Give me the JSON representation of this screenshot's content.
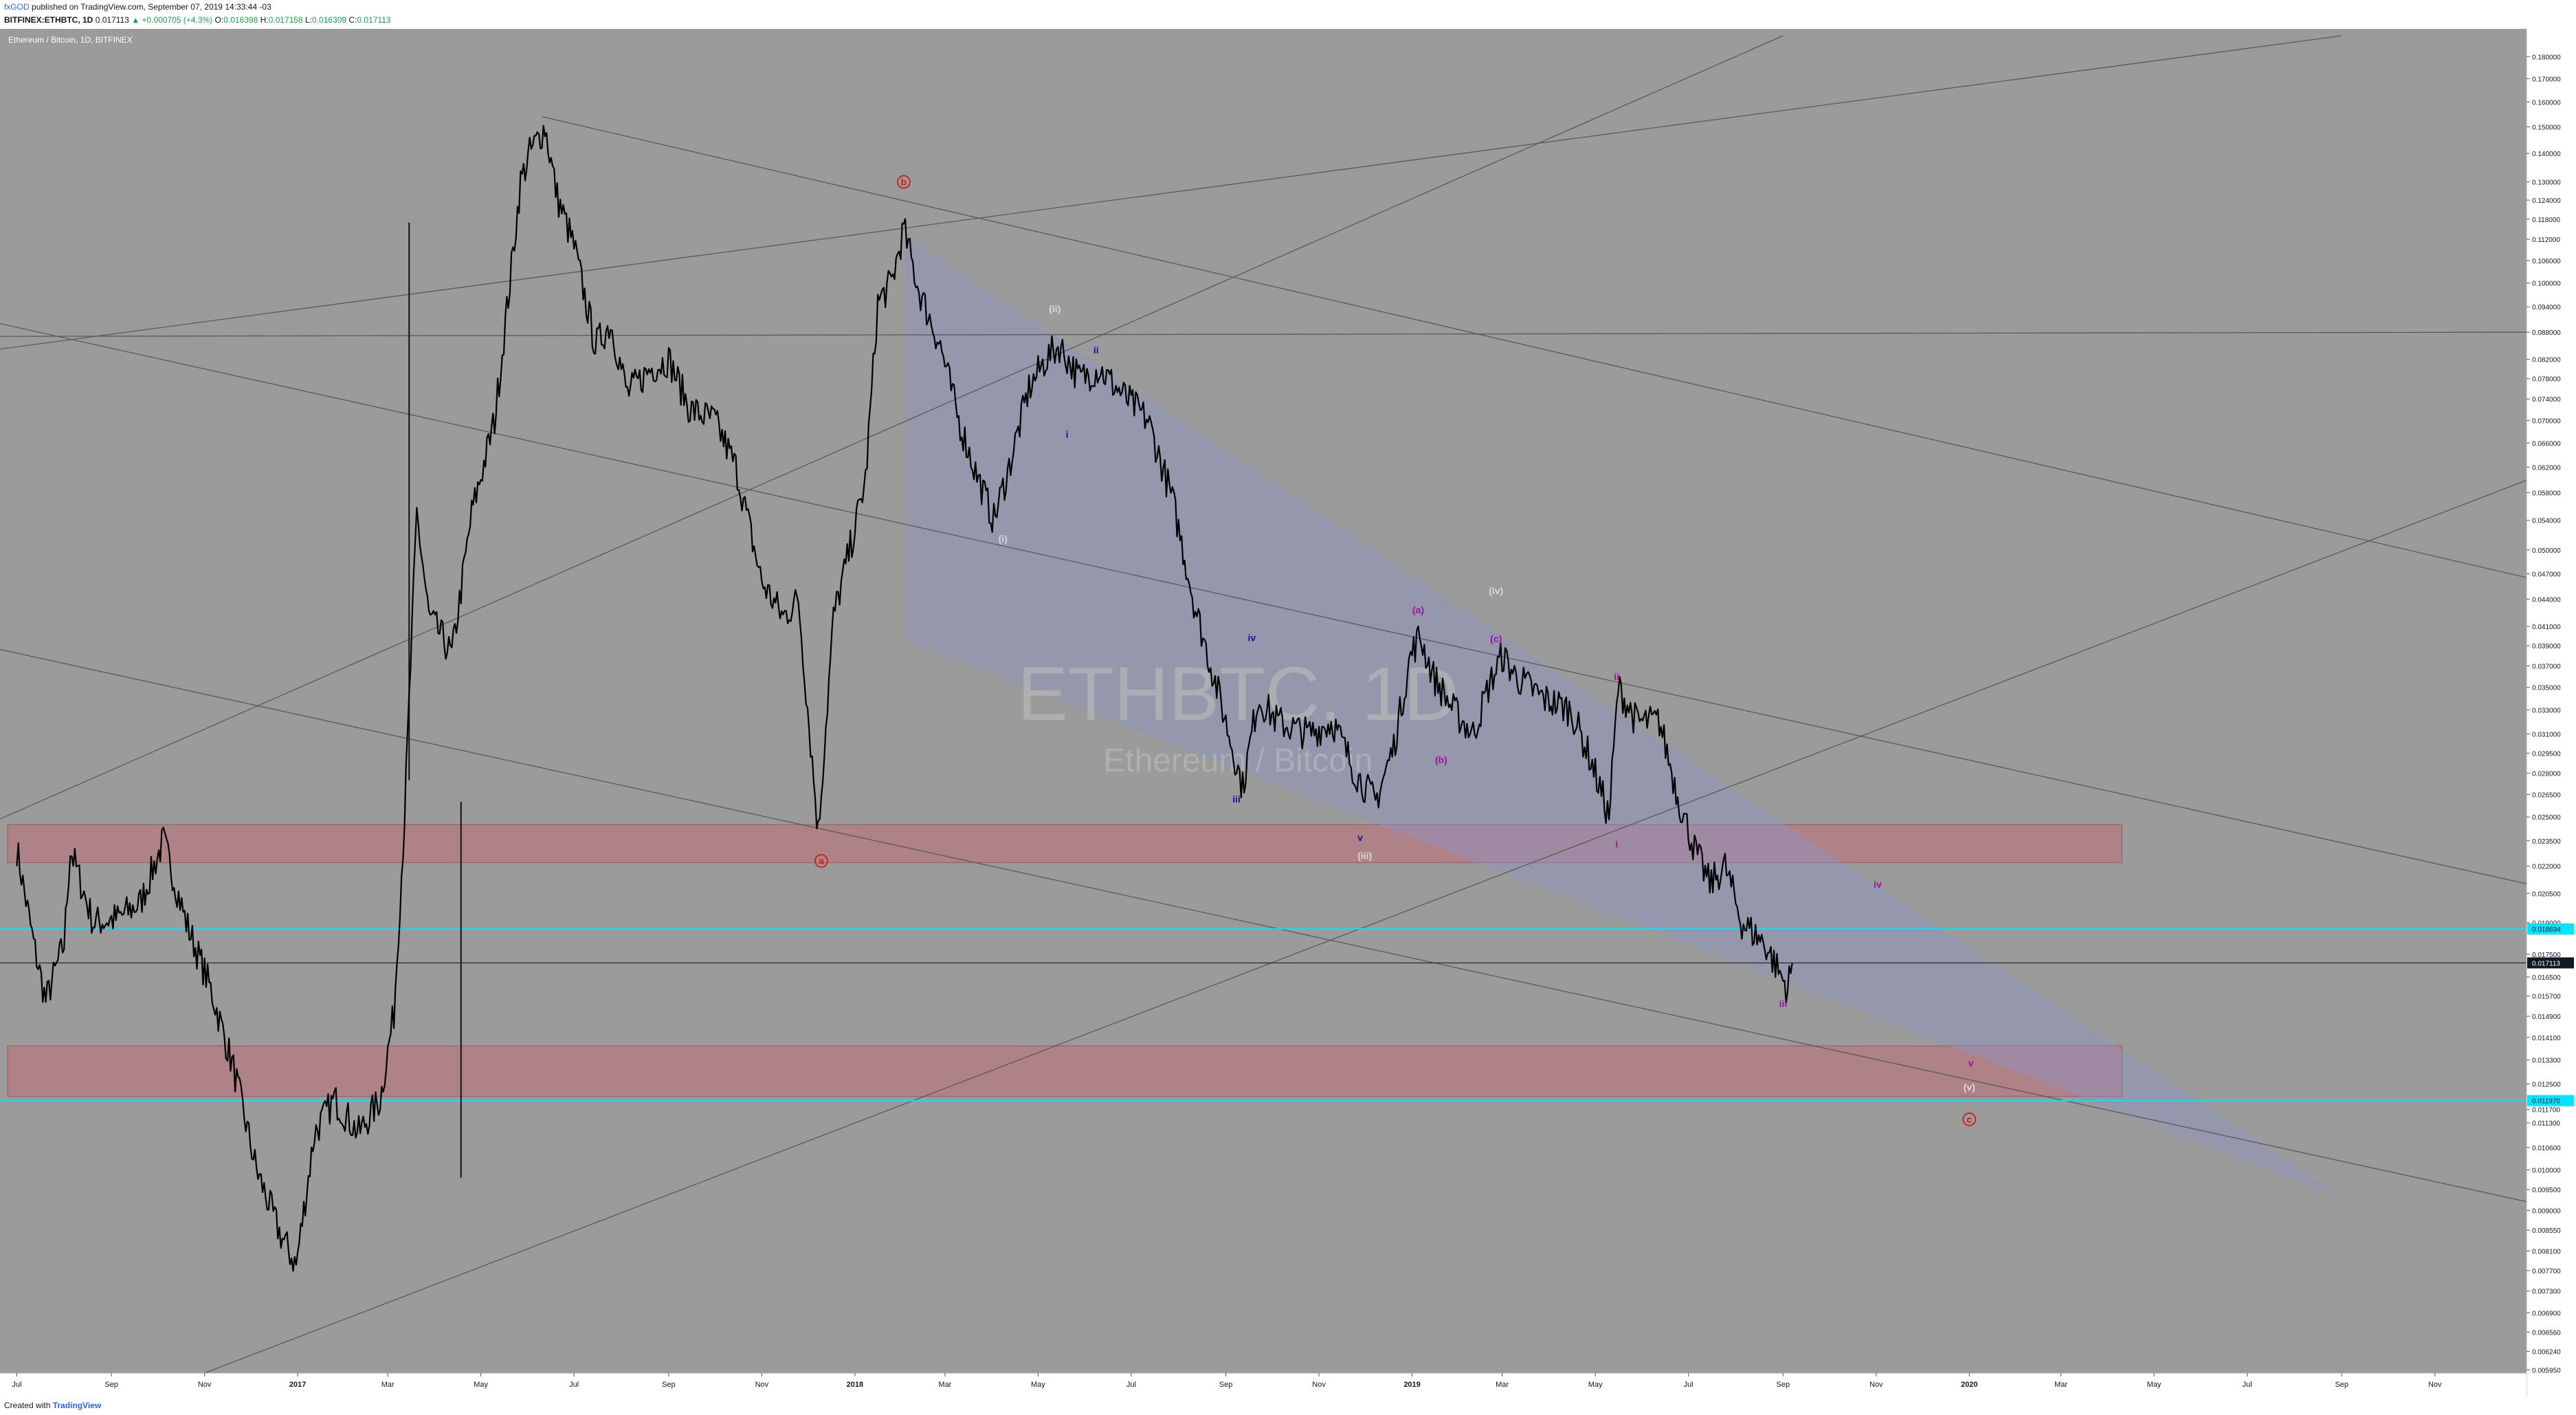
{
  "header": {
    "author": "fxGOD",
    "published": "published on TradingView.com, September 07, 2019 14:33:44 -03",
    "symbol": "BITFINEX:ETHBTC, 1D",
    "last": "0.017113",
    "change": "▲ +0.000705 (+4.3%)",
    "o_label": "O:",
    "o_value": "0.016398",
    "h_label": "H:",
    "h_value": "0.017158",
    "l_label": "L:",
    "l_value": "0.016309",
    "c_label": "C:",
    "c_value": "0.017113"
  },
  "pane_label": "Ethereum / Bitcoin, 1D, BITFINEX",
  "watermark": {
    "symbol": "ETHBTC, 1D",
    "name": "Ethereum / Bitcoin"
  },
  "footer": {
    "created_with": "Created with",
    "brand": "TradingView"
  },
  "colors": {
    "background": "#9b9b9b",
    "candles": "#000000",
    "zone": "#b57a80",
    "cyan": "#00e5ff",
    "wedge": "#8e92c4",
    "red_label": "#d11a1a",
    "blue_label": "#1212a0",
    "magenta_label": "#a0109c",
    "grey_label": "#d9d9d9"
  },
  "chart_data": {
    "type": "candlestick",
    "series": [
      {
        "name": "ETHBTC",
        "points": [
          [
            "2016-07-01",
            0.023
          ],
          [
            "2016-07-12",
            0.018
          ],
          [
            "2016-07-20",
            0.0155
          ],
          [
            "2016-08-01",
            0.018
          ],
          [
            "2016-08-05",
            0.023
          ],
          [
            "2016-08-20",
            0.019
          ],
          [
            "2016-09-05",
            0.0192
          ],
          [
            "2016-09-20",
            0.02
          ],
          [
            "2016-10-05",
            0.0235
          ],
          [
            "2016-10-20",
            0.019
          ],
          [
            "2016-11-05",
            0.016
          ],
          [
            "2016-11-20",
            0.013
          ],
          [
            "2016-12-05",
            0.01
          ],
          [
            "2016-12-20",
            0.0085
          ],
          [
            "2016-12-31",
            0.0078
          ],
          [
            "2017-01-12",
            0.011
          ],
          [
            "2017-01-25",
            0.012
          ],
          [
            "2017-02-10",
            0.011
          ],
          [
            "2017-02-24",
            0.012
          ],
          [
            "2017-03-05",
            0.015
          ],
          [
            "2017-03-12",
            0.025
          ],
          [
            "2017-03-20",
            0.055
          ],
          [
            "2017-03-28",
            0.042
          ],
          [
            "2017-04-05",
            0.04
          ],
          [
            "2017-04-12",
            0.038
          ],
          [
            "2017-04-25",
            0.055
          ],
          [
            "2017-05-10",
            0.07
          ],
          [
            "2017-05-20",
            0.1
          ],
          [
            "2017-05-27",
            0.13
          ],
          [
            "2017-06-02",
            0.14
          ],
          [
            "2017-06-12",
            0.15
          ],
          [
            "2017-06-20",
            0.125
          ],
          [
            "2017-07-01",
            0.11
          ],
          [
            "2017-07-15",
            0.085
          ],
          [
            "2017-07-25",
            0.09
          ],
          [
            "2017-08-05",
            0.075
          ],
          [
            "2017-08-20",
            0.08
          ],
          [
            "2017-09-01",
            0.082
          ],
          [
            "2017-09-15",
            0.072
          ],
          [
            "2017-10-01",
            0.07
          ],
          [
            "2017-10-15",
            0.062
          ],
          [
            "2017-11-01",
            0.046
          ],
          [
            "2017-11-15",
            0.042
          ],
          [
            "2017-11-25",
            0.044
          ],
          [
            "2017-12-08",
            0.024
          ],
          [
            "2017-12-18",
            0.042
          ],
          [
            "2017-12-31",
            0.052
          ],
          [
            "2018-01-08",
            0.06
          ],
          [
            "2018-01-16",
            0.095
          ],
          [
            "2018-01-25",
            0.1
          ],
          [
            "2018-02-02",
            0.115
          ],
          [
            "2018-02-12",
            0.098
          ],
          [
            "2018-02-26",
            0.085
          ],
          [
            "2018-03-10",
            0.07
          ],
          [
            "2018-03-20",
            0.062
          ],
          [
            "2018-04-02",
            0.054
          ],
          [
            "2018-04-12",
            0.062
          ],
          [
            "2018-04-25",
            0.076
          ],
          [
            "2018-05-06",
            0.082
          ],
          [
            "2018-05-15",
            0.085
          ],
          [
            "2018-05-28",
            0.078
          ],
          [
            "2018-06-10",
            0.08
          ],
          [
            "2018-06-28",
            0.074
          ],
          [
            "2018-07-12",
            0.07
          ],
          [
            "2018-07-28",
            0.057
          ],
          [
            "2018-08-12",
            0.043
          ],
          [
            "2018-08-28",
            0.034
          ],
          [
            "2018-09-12",
            0.027
          ],
          [
            "2018-09-22",
            0.034
          ],
          [
            "2018-10-05",
            0.032
          ],
          [
            "2018-10-25",
            0.031
          ],
          [
            "2018-11-10",
            0.032
          ],
          [
            "2018-11-25",
            0.028
          ],
          [
            "2018-12-08",
            0.026
          ],
          [
            "2018-12-20",
            0.03
          ],
          [
            "2018-12-31",
            0.038
          ],
          [
            "2019-01-06",
            0.04
          ],
          [
            "2019-01-15",
            0.036
          ],
          [
            "2019-01-28",
            0.033
          ],
          [
            "2019-02-10",
            0.031
          ],
          [
            "2019-02-20",
            0.035
          ],
          [
            "2019-03-01",
            0.038
          ],
          [
            "2019-03-10",
            0.036
          ],
          [
            "2019-03-28",
            0.034
          ],
          [
            "2019-04-15",
            0.033
          ],
          [
            "2019-04-28",
            0.029
          ],
          [
            "2019-05-10",
            0.025
          ],
          [
            "2019-05-16",
            0.035
          ],
          [
            "2019-05-28",
            0.032
          ],
          [
            "2019-06-12",
            0.032
          ],
          [
            "2019-06-25",
            0.026
          ],
          [
            "2019-07-05",
            0.023
          ],
          [
            "2019-07-15",
            0.021
          ],
          [
            "2019-07-25",
            0.022
          ],
          [
            "2019-08-05",
            0.019
          ],
          [
            "2019-08-20",
            0.018
          ],
          [
            "2019-08-31",
            0.0165
          ],
          [
            "2019-09-04",
            0.016
          ],
          [
            "2019-09-07",
            0.0171
          ]
        ]
      }
    ],
    "y_axis": {
      "scale": "log",
      "range": [
        0.0059,
        0.19
      ],
      "ticks": [
        "0.180000",
        "0.170000",
        "0.160000",
        "0.150000",
        "0.140000",
        "0.130000",
        "0.124000",
        "0.118000",
        "0.112000",
        "0.106000",
        "0.100000",
        "0.094000",
        "0.088000",
        "0.082000",
        "0.078000",
        "0.074000",
        "0.070000",
        "0.066000",
        "0.062000",
        "0.058000",
        "0.054000",
        "0.050000",
        "0.047000",
        "0.044000",
        "0.041000",
        "0.039000",
        "0.037000",
        "0.035000",
        "0.033000",
        "0.031000",
        "0.029500",
        "0.028000",
        "0.026500",
        "0.025000",
        "0.023500",
        "0.022000",
        "0.020500",
        "0.019000",
        "0.017500",
        "0.016500",
        "0.015700",
        "0.014900",
        "0.014100",
        "0.013300",
        "0.012500",
        "0.011700",
        "0.011300",
        "0.010600",
        "0.010000",
        "0.009500",
        "0.009000",
        "0.008550",
        "0.008100",
        "0.007700",
        "0.007300",
        "0.006900",
        "0.006560",
        "0.006240",
        "0.005950"
      ],
      "price_tags": [
        {
          "value": "0.018694",
          "num": 0.018694,
          "style": "cyan"
        },
        {
          "value": "0.017113",
          "num": 0.017113,
          "style": "dark"
        },
        {
          "value": "0.011970",
          "num": 0.01197,
          "style": "cyan"
        }
      ]
    },
    "x_axis": {
      "ticks": [
        {
          "label": "Jul",
          "date": "2016-07-01"
        },
        {
          "label": "Sep",
          "date": "2016-09-01"
        },
        {
          "label": "Nov",
          "date": "2016-11-01"
        },
        {
          "label": "2017",
          "date": "2017-01-01"
        },
        {
          "label": "Mar",
          "date": "2017-03-01"
        },
        {
          "label": "May",
          "date": "2017-05-01"
        },
        {
          "label": "Jul",
          "date": "2017-07-01"
        },
        {
          "label": "Sep",
          "date": "2017-09-01"
        },
        {
          "label": "Nov",
          "date": "2017-11-01"
        },
        {
          "label": "2018",
          "date": "2018-01-01"
        },
        {
          "label": "Mar",
          "date": "2018-03-01"
        },
        {
          "label": "May",
          "date": "2018-05-01"
        },
        {
          "label": "Jul",
          "date": "2018-07-01"
        },
        {
          "label": "Sep",
          "date": "2018-09-01"
        },
        {
          "label": "Nov",
          "date": "2018-11-01"
        },
        {
          "label": "2019",
          "date": "2019-01-01"
        },
        {
          "label": "Mar",
          "date": "2019-03-01"
        },
        {
          "label": "May",
          "date": "2019-05-01"
        },
        {
          "label": "Jul",
          "date": "2019-07-01"
        },
        {
          "label": "Sep",
          "date": "2019-09-01"
        },
        {
          "label": "Nov",
          "date": "2019-11-01"
        },
        {
          "label": "2020",
          "date": "2020-01-01"
        },
        {
          "label": "Mar",
          "date": "2020-03-01"
        },
        {
          "label": "May",
          "date": "2020-05-01"
        },
        {
          "label": "Jul",
          "date": "2020-07-01"
        },
        {
          "label": "Sep",
          "date": "2020-09-01"
        },
        {
          "label": "Nov",
          "date": "2020-11-01"
        }
      ]
    },
    "zones": [
      {
        "from": "2016-06-25",
        "to": "2020-04-10",
        "top": 0.0245,
        "bottom": 0.0222
      },
      {
        "from": "2016-06-25",
        "to": "2020-04-10",
        "top": 0.0138,
        "bottom": 0.0121
      }
    ],
    "horizontal_lines": [
      {
        "value": 0.018694,
        "style": "cyan"
      },
      {
        "value": 0.017113,
        "style": "dark"
      },
      {
        "value": 0.01197,
        "style": "cyan"
      }
    ],
    "wedge": [
      [
        "2018-02-03",
        0.113
      ],
      [
        "2020-09-01",
        0.0093
      ],
      [
        "2018-02-03",
        0.0395
      ]
    ],
    "trendlines": [
      [
        [
          "2016-03-15",
          0.08
        ],
        [
          "2020-09-01",
          0.19
        ]
      ],
      [
        [
          "2016-03-15",
          0.021
        ],
        [
          "2019-09-01",
          0.19
        ]
      ],
      [
        [
          "2016-11-01",
          0.0059
        ],
        [
          "2021-01-01",
          0.06
        ]
      ],
      [
        [
          "2016-03-15",
          0.098
        ],
        [
          "2021-01-01",
          0.021
        ]
      ],
      [
        [
          "2016-03-15",
          0.042
        ],
        [
          "2021-01-01",
          0.0092
        ]
      ],
      [
        [
          "2017-06-10",
          0.154
        ],
        [
          "2021-01-01",
          0.0465
        ]
      ],
      [
        [
          "2016-03-15",
          0.087
        ],
        [
          "2021-01-01",
          0.088
        ]
      ]
    ],
    "vertical_lines": [
      {
        "date": "2017-03-15",
        "top": 0.117,
        "bottom": 0.0275
      },
      {
        "date": "2017-04-18",
        "top": 0.026,
        "bottom": 0.0098
      }
    ],
    "wave_labels": [
      {
        "text": "b",
        "date": "2018-02-02",
        "value": 0.13,
        "color": "red",
        "circle": true
      },
      {
        "text": "a",
        "date": "2017-12-10",
        "value": 0.0223,
        "color": "red",
        "circle": true
      },
      {
        "text": "c",
        "date": "2020-01-01",
        "value": 0.0114,
        "color": "red",
        "circle": true
      },
      {
        "text": "(i)",
        "date": "2018-04-08",
        "value": 0.0515,
        "color": "grey"
      },
      {
        "text": "(ii)",
        "date": "2018-05-12",
        "value": 0.0935,
        "color": "grey"
      },
      {
        "text": "(iii)",
        "date": "2018-12-01",
        "value": 0.0226,
        "color": "grey"
      },
      {
        "text": "(iv)",
        "date": "2019-02-25",
        "value": 0.045,
        "color": "grey"
      },
      {
        "text": "(v)",
        "date": "2020-01-01",
        "value": 0.0124,
        "color": "grey"
      },
      {
        "text": "i",
        "date": "2018-05-20",
        "value": 0.0675,
        "color": "blue"
      },
      {
        "text": "ii",
        "date": "2018-06-08",
        "value": 0.084,
        "color": "blue"
      },
      {
        "text": "iii",
        "date": "2018-09-08",
        "value": 0.0262,
        "color": "blue"
      },
      {
        "text": "iv",
        "date": "2018-09-18",
        "value": 0.0398,
        "color": "blue"
      },
      {
        "text": "v",
        "date": "2018-11-28",
        "value": 0.0237,
        "color": "blue"
      },
      {
        "text": "(a)",
        "date": "2019-01-05",
        "value": 0.0428,
        "color": "magenta"
      },
      {
        "text": "(b)",
        "date": "2019-01-20",
        "value": 0.029,
        "color": "magenta"
      },
      {
        "text": "(c)",
        "date": "2019-02-25",
        "value": 0.0397,
        "color": "magenta"
      },
      {
        "text": "ii",
        "date": "2019-05-15",
        "value": 0.036,
        "color": "magenta"
      },
      {
        "text": "i",
        "date": "2019-05-15",
        "value": 0.0233,
        "color": "magenta"
      },
      {
        "text": "iii",
        "date": "2019-09-01",
        "value": 0.0154,
        "color": "magenta"
      },
      {
        "text": "iv",
        "date": "2019-11-02",
        "value": 0.021,
        "color": "magenta"
      },
      {
        "text": "v",
        "date": "2020-01-02",
        "value": 0.0132,
        "color": "magenta"
      }
    ]
  }
}
